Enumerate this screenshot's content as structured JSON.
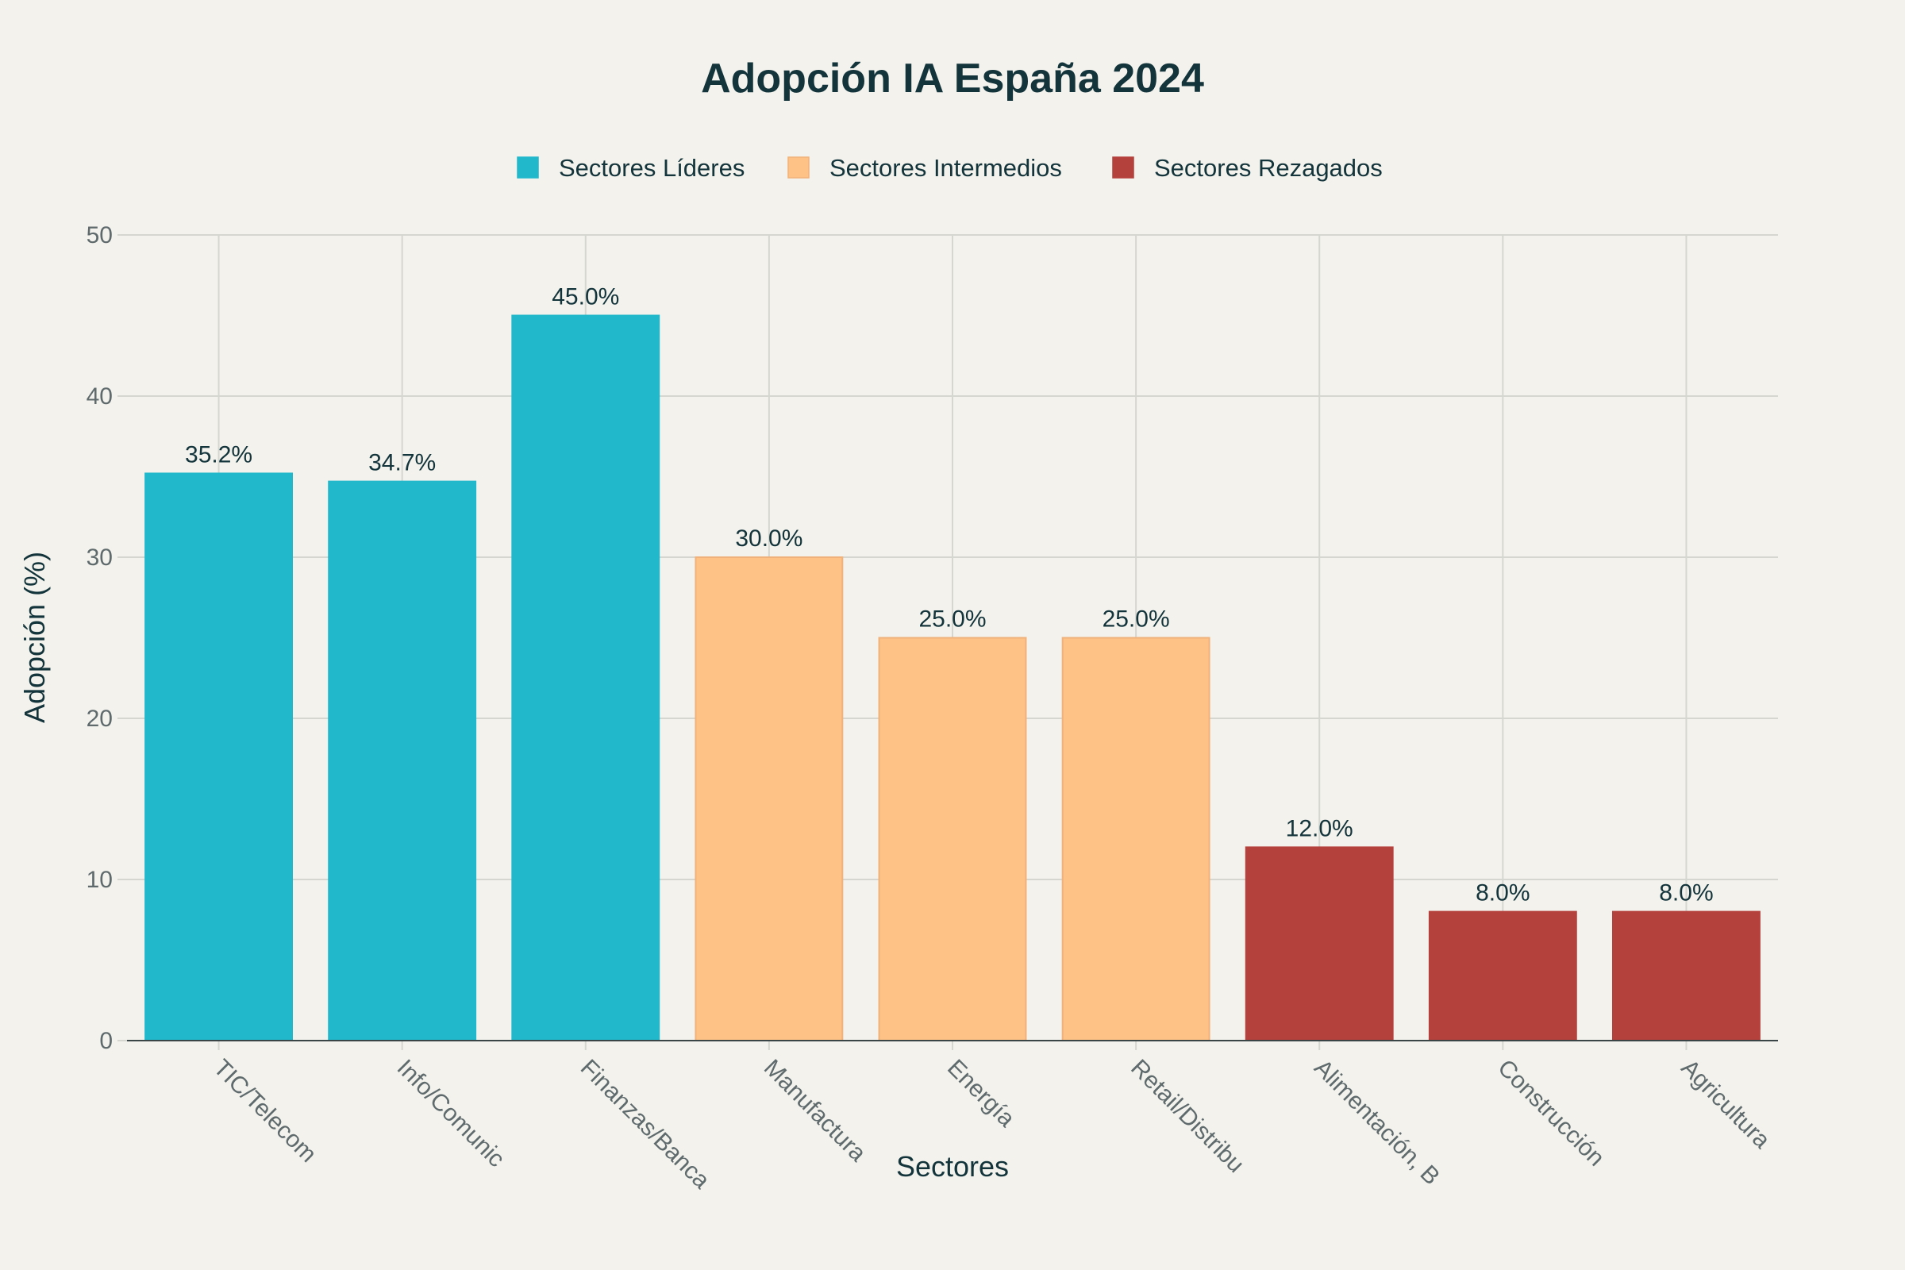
{
  "chart_data": {
    "type": "bar",
    "title": "Adopción IA España 2024",
    "xlabel": "Sectores",
    "ylabel": "Adopción (%)",
    "ylim": [
      0,
      50
    ],
    "yticks": [
      0,
      10,
      20,
      30,
      40,
      50
    ],
    "grid": true,
    "legend_position": "top-center",
    "categories": [
      "TIC/Telecom",
      "Info/Comunic",
      "Finanzas/Banca",
      "Manufactura",
      "Energía",
      "Retail/Distribu",
      "Alimentación, B",
      "Construcción",
      "Agricultura"
    ],
    "values": [
      35.2,
      34.7,
      45.0,
      30.0,
      25.0,
      25.0,
      12.0,
      8.0,
      8.0
    ],
    "data_labels": [
      "35.2%",
      "34.7%",
      "45.0%",
      "30.0%",
      "25.0%",
      "25.0%",
      "12.0%",
      "8.0%",
      "8.0%"
    ],
    "groups": [
      0,
      0,
      0,
      1,
      1,
      1,
      2,
      2,
      2
    ],
    "series": [
      {
        "name": "Sectores Líderes",
        "color": "#21b8cc"
      },
      {
        "name": "Sectores Intermedios",
        "color": "#fec186"
      },
      {
        "name": "Sectores Rezagados",
        "color": "#b5413d"
      }
    ]
  }
}
